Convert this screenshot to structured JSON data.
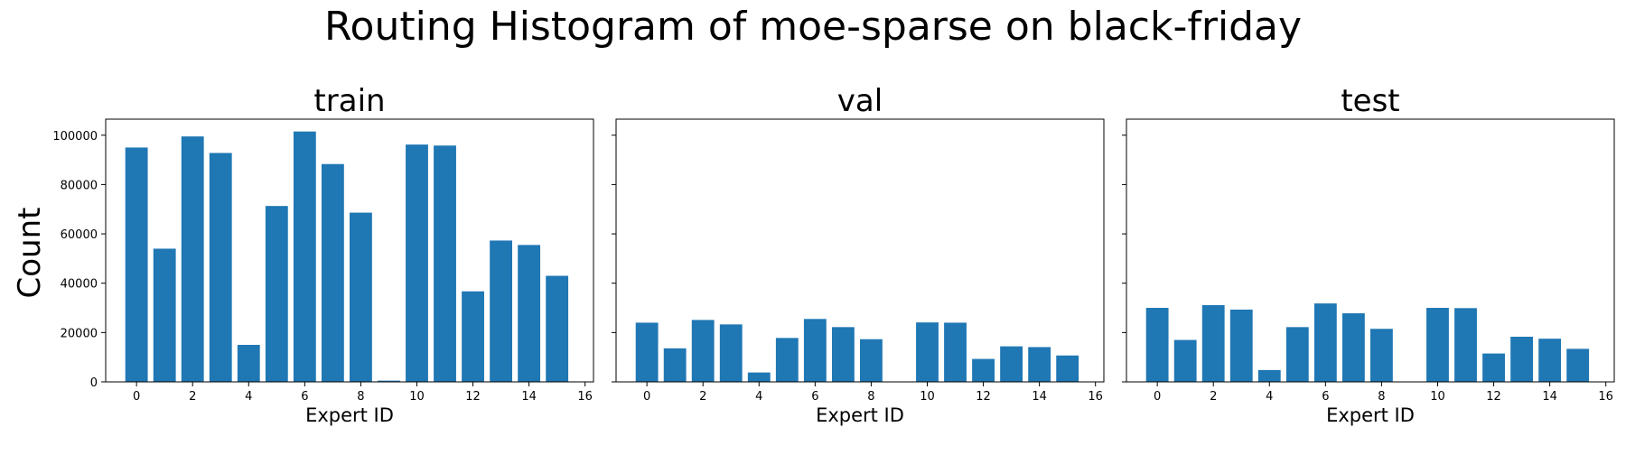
{
  "figure": {
    "title": "Routing Histogram of moe-sparse on black-friday",
    "ylabel": "Count"
  },
  "style": {
    "bar_color": "#1f77b4",
    "axis_color": "#000000",
    "background": "#ffffff"
  },
  "chart_data": [
    {
      "type": "bar",
      "title": "train",
      "xlabel": "Expert ID",
      "ylabel": "Count",
      "x": [
        0,
        1,
        2,
        3,
        4,
        5,
        6,
        7,
        8,
        9,
        10,
        11,
        12,
        13,
        14,
        15
      ],
      "values": [
        95000,
        54000,
        99500,
        92800,
        15000,
        71300,
        101500,
        88300,
        68600,
        500,
        96200,
        95800,
        36700,
        57300,
        55500,
        43000
      ],
      "xticks": [
        "0",
        "2",
        "4",
        "6",
        "8",
        "10",
        "12",
        "14",
        "16"
      ],
      "yticks": [
        "0",
        "20000",
        "40000",
        "60000",
        "80000",
        "100000"
      ],
      "xlim": [
        -1.1,
        16.3
      ],
      "ylim": [
        0,
        106500
      ],
      "shared_y": true
    },
    {
      "type": "bar",
      "title": "val",
      "xlabel": "Expert ID",
      "x": [
        0,
        1,
        2,
        3,
        4,
        5,
        6,
        7,
        8,
        9,
        10,
        11,
        12,
        13,
        14,
        15
      ],
      "values": [
        24000,
        13600,
        25100,
        23300,
        3800,
        17800,
        25500,
        22200,
        17300,
        100,
        24100,
        24000,
        9300,
        14400,
        14100,
        10700
      ],
      "xticks": [
        "0",
        "2",
        "4",
        "6",
        "8",
        "10",
        "12",
        "14",
        "16"
      ],
      "xlim": [
        -1.1,
        16.3
      ],
      "ylim": [
        0,
        106500
      ],
      "shared_y": true
    },
    {
      "type": "bar",
      "title": "test",
      "xlabel": "Expert ID",
      "x": [
        0,
        1,
        2,
        3,
        4,
        5,
        6,
        7,
        8,
        9,
        10,
        11,
        12,
        13,
        14,
        15
      ],
      "values": [
        30000,
        17000,
        31100,
        29300,
        4800,
        22200,
        31800,
        27800,
        21500,
        150,
        30000,
        29900,
        11500,
        18300,
        17500,
        13400
      ],
      "xticks": [
        "0",
        "2",
        "4",
        "6",
        "8",
        "10",
        "12",
        "14",
        "16"
      ],
      "xlim": [
        -1.1,
        16.3
      ],
      "ylim": [
        0,
        106500
      ],
      "shared_y": true
    }
  ]
}
